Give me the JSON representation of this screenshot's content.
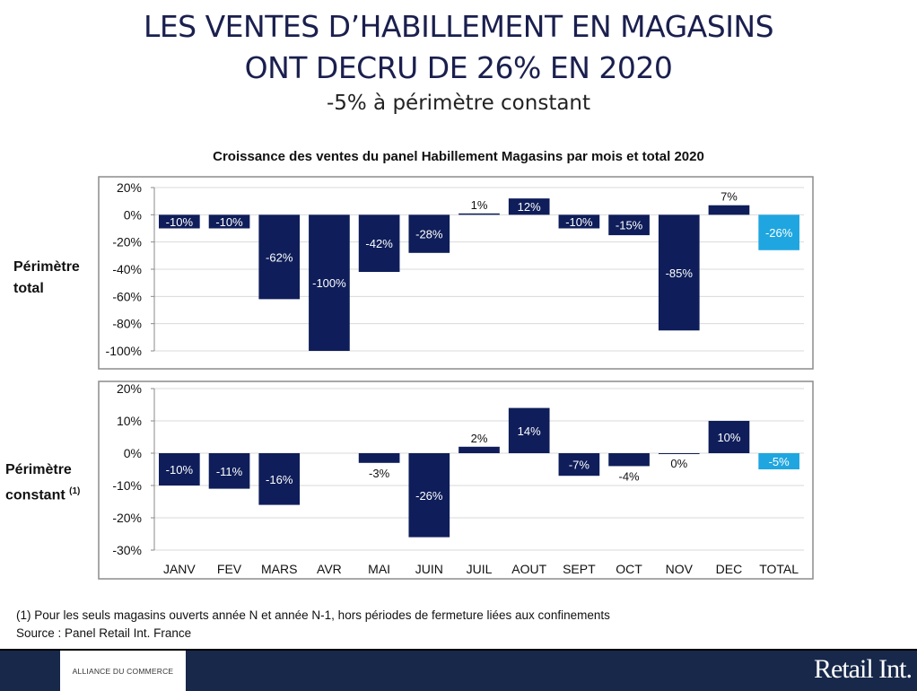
{
  "title_line1": "LES VENTES D’HABILLEMENT EN MAGASINS",
  "title_line2": "ONT DECRU DE 26% EN 2020",
  "subtitle": "-5% à périmètre constant",
  "colors": {
    "bar": "#0f1e5a",
    "total_bar": "#1fa6e0",
    "title": "#1a1f4e",
    "footer": "#17284a"
  },
  "chart_data": [
    {
      "type": "bar",
      "title": "Croissance des ventes du panel Habillement Magasins par mois et total 2020",
      "panel_label": [
        "Périmètre",
        "total"
      ],
      "categories": [
        "JANV",
        "FEV",
        "MARS",
        "AVR",
        "MAI",
        "JUIN",
        "JUIL",
        "AOUT",
        "SEPT",
        "OCT",
        "NOV",
        "DEC",
        "TOTAL"
      ],
      "values": [
        -10,
        -10,
        -62,
        -100,
        -42,
        -28,
        1,
        12,
        -10,
        -15,
        -85,
        7,
        -26
      ],
      "data_labels": [
        "-10%",
        "-10%",
        "-62%",
        "-100%",
        "-42%",
        "-28%",
        "1%",
        "12%",
        "-10%",
        "-15%",
        "-85%",
        "7%",
        "-26%"
      ],
      "ylim": [
        -100,
        20
      ],
      "yticks": [
        20,
        0,
        -20,
        -40,
        -60,
        -80,
        -100
      ],
      "ytick_labels": [
        "20%",
        "0%",
        "-20%",
        "-40%",
        "-60%",
        "-80%",
        "-100%"
      ],
      "grid": true
    },
    {
      "type": "bar",
      "panel_label": [
        "Périmètre",
        "constant"
      ],
      "panel_label_note": "(1)",
      "categories": [
        "JANV",
        "FEV",
        "MARS",
        "AVR",
        "MAI",
        "JUIN",
        "JUIL",
        "AOUT",
        "SEPT",
        "OCT",
        "NOV",
        "DEC",
        "TOTAL"
      ],
      "values": [
        -10,
        -11,
        -16,
        null,
        -3,
        -26,
        2,
        14,
        -7,
        -4,
        0,
        10,
        -5
      ],
      "data_labels": [
        "-10%",
        "-11%",
        "-16%",
        "",
        "-3%",
        "-26%",
        "2%",
        "14%",
        "-7%",
        "-4%",
        "0%",
        "10%",
        "-5%"
      ],
      "ylim": [
        -30,
        20
      ],
      "yticks": [
        20,
        10,
        0,
        -10,
        -20,
        -30
      ],
      "ytick_labels": [
        "20%",
        "10%",
        "0%",
        "-10%",
        "-20%",
        "-30%"
      ],
      "grid": true
    }
  ],
  "footnote": "(1)  Pour les seuls magasins ouverts année N et année N-1, hors périodes de fermeture liées aux confinements",
  "source": "Source : Panel Retail Int. France",
  "logos": {
    "left": "ALLIANCE DU COMMERCE",
    "right": "Retail Int."
  }
}
